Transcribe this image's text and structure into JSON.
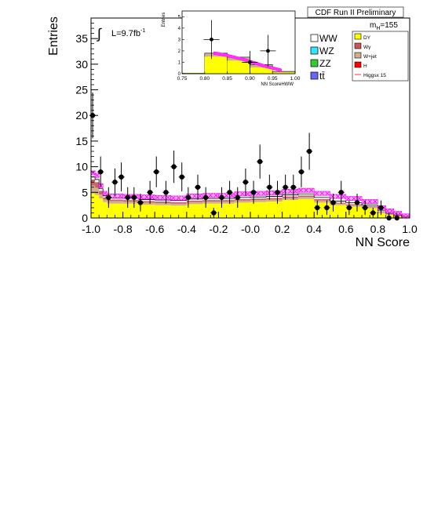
{
  "chart_data": {
    "type": "bar",
    "title": "CDF Run II Preliminary",
    "xlabel": "NN Score",
    "ylabel": "Entries",
    "xlim": [
      -1.0,
      1.0
    ],
    "ylim": [
      0,
      39
    ],
    "x_ticks": [
      "-1.0",
      "-0.8",
      "-0.6",
      "-0.4",
      "-0.2",
      "-0.0",
      "0.2",
      "0.4",
      "0.6",
      "0.8",
      "1.0"
    ],
    "y_ticks": [
      "0",
      "5",
      "10",
      "15",
      "20",
      "25",
      "30",
      "35"
    ],
    "annotations": {
      "luminosity": "L=9.7fb",
      "luminosity_sup": "-1",
      "mass": "m",
      "mass_sub": "H",
      "mass_value": "=155"
    },
    "legend_left": [
      {
        "label": "WW",
        "color": "#ffffff"
      },
      {
        "label": "WZ",
        "color": "#33e5ff"
      },
      {
        "label": "ZZ",
        "color": "#33cc33"
      },
      {
        "label": "tt̄",
        "color": "#6666ff"
      }
    ],
    "legend_right": [
      {
        "label": "DY",
        "color": "#ffff00"
      },
      {
        "label": "Wγ",
        "color": "#cc5555"
      },
      {
        "label": "W+jet",
        "color": "#d2b08c"
      },
      {
        "label": "H",
        "color": "#ff0000"
      },
      {
        "label": "Higgsx 15",
        "color": "#ff3333"
      }
    ],
    "bin_edges": [
      -1.0,
      -0.975,
      -0.95,
      -0.925,
      -0.9,
      -0.8,
      -0.7,
      -0.6,
      -0.5,
      -0.4,
      -0.3,
      -0.2,
      -0.1,
      0.0,
      0.1,
      0.2,
      0.3,
      0.4,
      0.5,
      0.6,
      0.7,
      0.8,
      0.85,
      0.9,
      0.95,
      1.0
    ],
    "stack": {
      "DY": [
        4.8,
        4.5,
        3.8,
        3.1,
        2.8,
        2.8,
        2.6,
        2.5,
        2.4,
        2.7,
        2.8,
        2.8,
        3.0,
        3.1,
        3.2,
        3.5,
        3.7,
        3.0,
        2.5,
        2.2,
        1.9,
        0.9,
        0.6,
        0.3,
        0.1
      ],
      "Wjet": [
        1.5,
        1.4,
        0.8,
        0.5,
        0.5,
        0.4,
        0.4,
        0.4,
        0.4,
        0.4,
        0.4,
        0.4,
        0.4,
        0.4,
        0.4,
        0.4,
        0.4,
        0.4,
        0.3,
        0.3,
        0.2,
        0.2,
        0.1,
        0.1,
        0.1
      ],
      "Wgamma": [
        1.2,
        1.1,
        0.7,
        0.4,
        0.3,
        0.3,
        0.3,
        0.3,
        0.3,
        0.3,
        0.3,
        0.3,
        0.3,
        0.3,
        0.3,
        0.3,
        0.3,
        0.3,
        0.2,
        0.2,
        0.2,
        0.1,
        0.1,
        0.1,
        0.05
      ],
      "WW": [
        0.5,
        0.5,
        0.4,
        0.3,
        0.3,
        0.3,
        0.3,
        0.3,
        0.3,
        0.3,
        0.3,
        0.3,
        0.3,
        0.3,
        0.3,
        0.3,
        0.3,
        0.3,
        0.3,
        0.3,
        0.2,
        0.2,
        0.1,
        0.1,
        0.05
      ]
    },
    "higgs_band": [
      8.8,
      8.3,
      6.3,
      4.8,
      4.3,
      4.2,
      4.1,
      4.0,
      3.9,
      4.3,
      4.4,
      4.4,
      4.7,
      4.8,
      4.9,
      5.2,
      5.4,
      4.8,
      4.2,
      3.8,
      3.2,
      2.0,
      1.4,
      0.9,
      0.4
    ],
    "data_points": {
      "x": [
        -0.99,
        -0.94,
        -0.89,
        -0.85,
        -0.81,
        -0.77,
        -0.73,
        -0.69,
        -0.63,
        -0.59,
        -0.53,
        -0.48,
        -0.43,
        -0.39,
        -0.33,
        -0.28,
        -0.23,
        -0.18,
        -0.13,
        -0.08,
        -0.03,
        0.02,
        0.06,
        0.12,
        0.17,
        0.22,
        0.27,
        0.32,
        0.37,
        0.42,
        0.48,
        0.52,
        0.57,
        0.62,
        0.67,
        0.72,
        0.77,
        0.82,
        0.87,
        0.92
      ],
      "y": [
        20,
        9,
        4,
        7,
        8,
        4,
        4,
        3,
        5,
        9,
        5,
        10,
        8,
        4,
        6,
        4,
        1,
        4,
        5,
        4,
        7,
        5,
        11,
        6,
        5,
        6,
        6,
        9,
        13,
        2,
        2,
        3,
        5,
        2,
        3,
        2,
        1,
        2,
        0,
        0
      ]
    },
    "inset": {
      "xlabel": "NN ScoreHWW",
      "ylabel": "Entries",
      "xlim": [
        0.75,
        1.0
      ],
      "ylim": [
        0,
        5.5
      ],
      "x_ticks": [
        "0.75",
        "0.80",
        "0.85",
        "0.90",
        "0.95",
        "1.00"
      ],
      "y_ticks": [
        "0",
        "1",
        "2",
        "3",
        "4",
        "5"
      ],
      "bin_edges": [
        0.75,
        0.8,
        0.85,
        0.9,
        0.95,
        1.0
      ],
      "stack_total": [
        0.05,
        1.8,
        1.45,
        0.8,
        0.2
      ],
      "dy": [
        0.05,
        1.5,
        1.15,
        0.55,
        0.1
      ],
      "higgs_curve": {
        "x": [
          0.82,
          0.83,
          0.85,
          0.87,
          0.89,
          0.91,
          0.93,
          0.95,
          0.97
        ],
        "y": [
          1.8,
          1.75,
          1.6,
          1.4,
          1.2,
          0.95,
          0.7,
          0.5,
          0.3
        ]
      },
      "data_points": {
        "x": [
          0.815,
          0.9,
          0.94
        ],
        "y": [
          3,
          1,
          2
        ],
        "err": [
          1.7,
          1.0,
          1.4
        ]
      }
    }
  }
}
